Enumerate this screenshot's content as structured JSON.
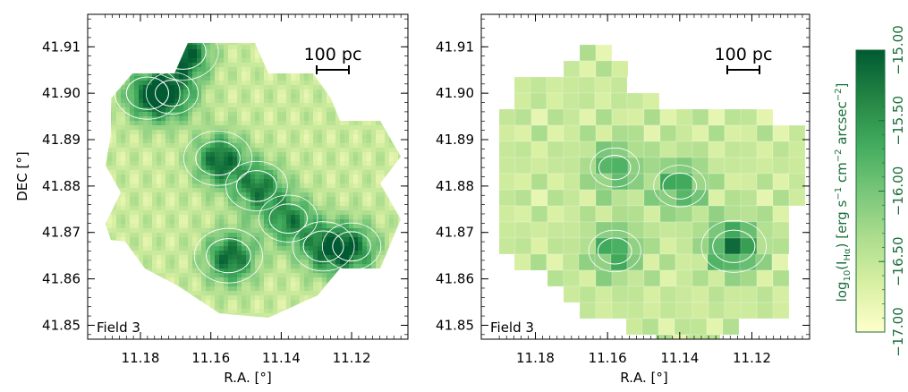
{
  "chart_data": [
    {
      "type": "heatmap",
      "panel": "left",
      "field_label": "Field 3",
      "scale_bar_label": "100 pc",
      "xlabel": "R.A. [°]",
      "ylabel": "DEC [°]",
      "xlim": [
        11.195,
        11.104
      ],
      "ylim": [
        41.847,
        41.917
      ],
      "x_ticks": [
        11.18,
        11.16,
        11.14,
        11.12
      ],
      "x_tick_labels": [
        "11.18",
        "11.16",
        "11.14",
        "11.12"
      ],
      "y_ticks": [
        41.85,
        41.86,
        41.87,
        41.88,
        41.89,
        41.9,
        41.91
      ],
      "y_tick_labels": [
        "41.85",
        "41.86",
        "41.87",
        "41.88",
        "41.89",
        "41.90",
        "41.91"
      ],
      "high_emission_regions": [
        {
          "ra": 11.168,
          "dec": 41.909,
          "level": -15.0
        },
        {
          "ra": 11.178,
          "dec": 41.9,
          "level": -15.2
        },
        {
          "ra": 11.171,
          "dec": 41.9,
          "level": -15.6
        },
        {
          "ra": 11.158,
          "dec": 41.886,
          "level": -15.1
        },
        {
          "ra": 11.147,
          "dec": 41.88,
          "level": -15.3
        },
        {
          "ra": 11.155,
          "dec": 41.865,
          "level": -15.1
        },
        {
          "ra": 11.138,
          "dec": 41.873,
          "level": -15.4
        },
        {
          "ra": 11.128,
          "dec": 41.867,
          "level": -15.3
        },
        {
          "ra": 11.12,
          "dec": 41.867,
          "level": -15.4
        }
      ]
    },
    {
      "type": "heatmap",
      "panel": "right",
      "field_label": "Field 3",
      "scale_bar_label": "100 pc",
      "xlabel": "R.A. [°]",
      "ylabel": "",
      "xlim": [
        11.195,
        11.104
      ],
      "ylim": [
        41.847,
        41.917
      ],
      "x_ticks": [
        11.18,
        11.16,
        11.14,
        11.12
      ],
      "x_tick_labels": [
        "11.18",
        "11.16",
        "11.14",
        "11.12"
      ],
      "y_ticks": [
        41.85,
        41.86,
        41.87,
        41.88,
        41.89,
        41.9,
        41.91
      ],
      "y_tick_labels": [
        "41.85",
        "41.86",
        "41.87",
        "41.88",
        "41.89",
        "41.90",
        "41.91"
      ],
      "high_emission_regions": [
        {
          "ra": 11.158,
          "dec": 41.884,
          "level": -15.7
        },
        {
          "ra": 11.14,
          "dec": 41.88,
          "level": -15.6
        },
        {
          "ra": 11.125,
          "dec": 41.867,
          "level": -15.2
        },
        {
          "ra": 11.158,
          "dec": 41.866,
          "level": -15.6
        }
      ]
    }
  ],
  "colorbar": {
    "label": "log10(IHα) [erg s⁻¹ cm⁻² arcsec⁻²]",
    "label_prefix": "log",
    "label_sub": "10",
    "label_paren_open": "(I",
    "label_sub_halpha": "Hα",
    "label_units": ") [erg s",
    "label_s_exp": "−1",
    "label_cm": " cm",
    "label_cm_exp": "−2",
    "label_arcsec": " arcsec",
    "label_arcsec_exp": "−2",
    "label_close": "]",
    "range": [
      -17.0,
      -15.0
    ],
    "ticks": [
      -17.0,
      -16.5,
      -16.0,
      -15.5,
      -15.0
    ],
    "tick_labels": [
      "−17.00",
      "−16.50",
      "−16.00",
      "−15.50",
      "−15.00"
    ],
    "colormap": [
      "#ffffcc",
      "#d9f0a3",
      "#addd8e",
      "#78c679",
      "#41ab5d",
      "#238443",
      "#005a32"
    ]
  }
}
